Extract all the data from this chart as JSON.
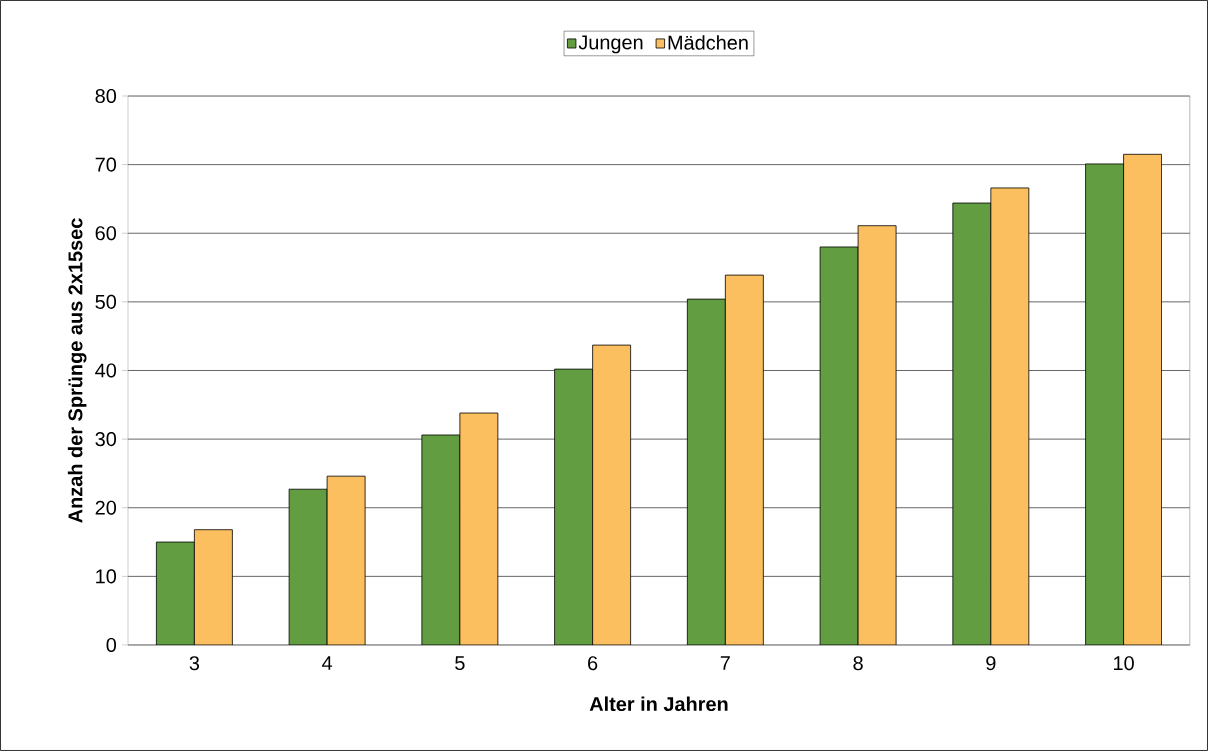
{
  "chart_data": {
    "type": "bar",
    "xlabel": "Alter in Jahren",
    "ylabel": "Anzah der Sprünge aus 2x15sec",
    "categories": [
      "3",
      "4",
      "5",
      "6",
      "7",
      "8",
      "9",
      "10"
    ],
    "series": [
      {
        "name": "Jungen",
        "color": "#629d41",
        "values": [
          15.0,
          22.7,
          30.6,
          40.2,
          50.4,
          58.0,
          64.4,
          70.1
        ]
      },
      {
        "name": "Mädchen",
        "color": "#fbbf5f",
        "values": [
          16.8,
          24.6,
          33.8,
          43.7,
          53.9,
          61.1,
          66.6,
          71.5
        ]
      }
    ],
    "ylim": [
      0,
      80
    ],
    "yticks": [
      0,
      10,
      20,
      30,
      40,
      50,
      60,
      70,
      80
    ],
    "grid": "y",
    "legend": "top"
  }
}
